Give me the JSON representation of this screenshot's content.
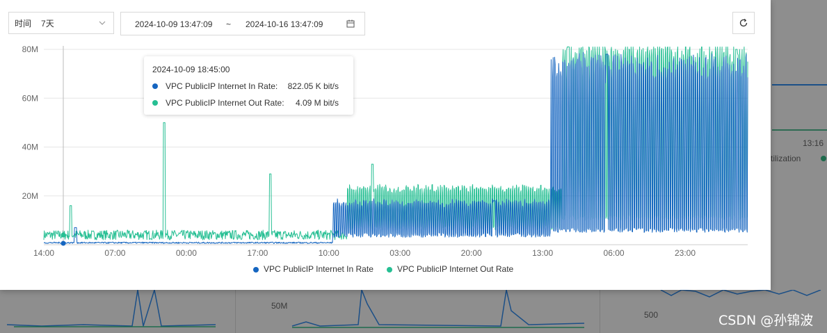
{
  "toolbar": {
    "time_label": "时间",
    "time_value": "7天",
    "start_time": "2024-10-09 13:47:09",
    "separator": "~",
    "end_time": "2024-10-16 13:47:09"
  },
  "tooltip": {
    "time": "2024-10-09 18:45:00",
    "rows": [
      {
        "name": "VPC PublicIP Internet In Rate:",
        "value": "822.05 K bit/s",
        "color": "#1565c0"
      },
      {
        "name": "VPC PublicIP Internet Out Rate:",
        "value": "4.09 M bit/s",
        "color": "#26bf93"
      }
    ]
  },
  "background": {
    "tick_1316": "13:16",
    "partial_legend": "tilization",
    "label_50m": "50M",
    "label_500": "500"
  },
  "watermark": "CSDN @孙锦波",
  "icons": {
    "chevron": "chevron-down-icon",
    "calendar": "calendar-icon",
    "refresh": "refresh-icon"
  },
  "chart_data": {
    "type": "line",
    "ylim": [
      0,
      80
    ],
    "y_unit": "M",
    "y_ticks": [
      "80M",
      "60M",
      "40M",
      "20M"
    ],
    "x_ticks": [
      "14:00",
      "07:00",
      "00:00",
      "17:00",
      "10:00",
      "03:00",
      "20:00",
      "13:00",
      "06:00",
      "23:00"
    ],
    "series": [
      {
        "name": "VPC PublicIP Internet In Rate",
        "color": "#1565c0",
        "segments": [
          {
            "x0": 0,
            "x1": 0.41,
            "base": 0.5,
            "amp": 0.6,
            "note": "low baseline"
          },
          {
            "x0": 0.41,
            "x1": 0.72,
            "base": 3,
            "amp": 14
          },
          {
            "x0": 0.72,
            "x1": 1.0,
            "base": 5,
            "amp": 72
          }
        ],
        "peaks": [
          {
            "x": 0.045,
            "y": 7
          },
          {
            "x": 0.64,
            "y": 18
          },
          {
            "x": 0.8,
            "y": 78
          }
        ]
      },
      {
        "name": "VPC PublicIP Internet Out Rate",
        "color": "#26bf93",
        "segments": [
          {
            "x0": 0,
            "x1": 0.43,
            "base": 2,
            "amp": 4
          },
          {
            "x0": 0.43,
            "x1": 0.735,
            "base": 6,
            "amp": 17
          },
          {
            "x0": 0.735,
            "x1": 1.0,
            "base": 10,
            "amp": 72
          }
        ],
        "peaks": [
          {
            "x": 0.038,
            "y": 16
          },
          {
            "x": 0.171,
            "y": 50
          },
          {
            "x": 0.322,
            "y": 29
          },
          {
            "x": 0.467,
            "y": 33
          },
          {
            "x": 0.745,
            "y": 81
          },
          {
            "x": 0.984,
            "y": 80
          }
        ]
      }
    ],
    "legend": "bottom-center",
    "grid": true
  }
}
